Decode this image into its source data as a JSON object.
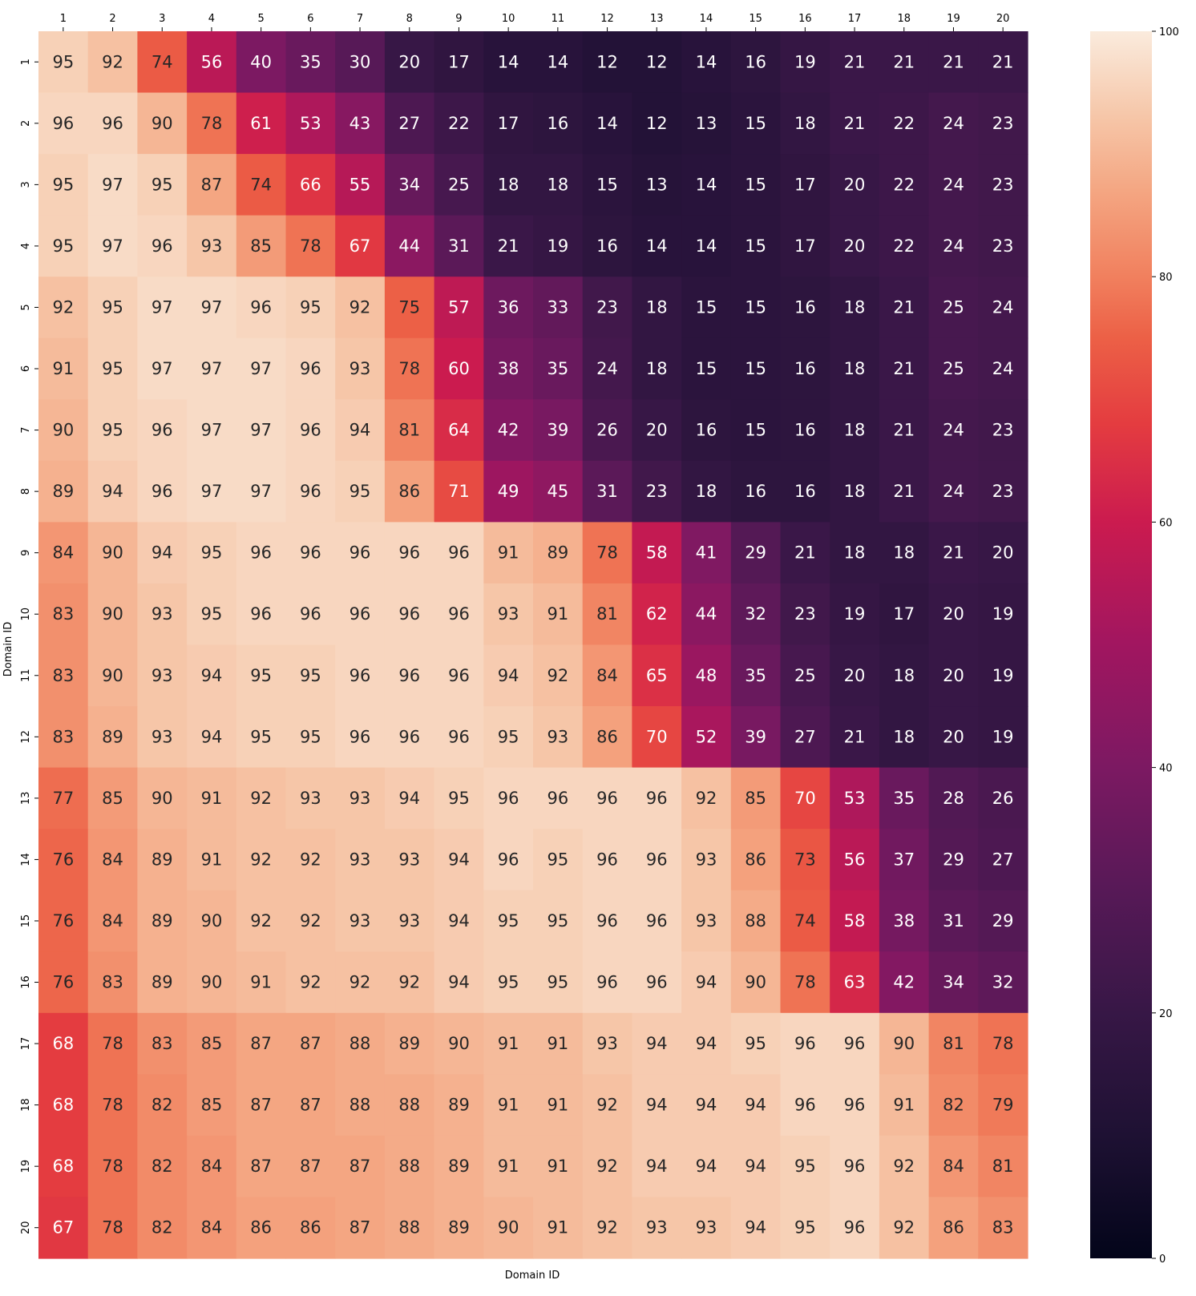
{
  "chart_data": {
    "type": "heatmap",
    "title": "",
    "xlabel": "Domain ID",
    "ylabel": "Domain ID",
    "x_categories": [
      "1",
      "2",
      "3",
      "4",
      "5",
      "6",
      "7",
      "8",
      "9",
      "10",
      "11",
      "12",
      "13",
      "14",
      "15",
      "16",
      "17",
      "18",
      "19",
      "20"
    ],
    "y_categories": [
      "1",
      "2",
      "3",
      "4",
      "5",
      "6",
      "7",
      "8",
      "9",
      "10",
      "11",
      "12",
      "13",
      "14",
      "15",
      "16",
      "17",
      "18",
      "19",
      "20"
    ],
    "x_axis_position": "top",
    "colormap": "rocket",
    "colorbar": {
      "min": 0,
      "max": 100,
      "ticks": [
        0,
        20,
        40,
        60,
        80,
        100
      ]
    },
    "values": [
      [
        95,
        92,
        74,
        56,
        40,
        35,
        30,
        20,
        17,
        14,
        14,
        12,
        12,
        14,
        16,
        19,
        21,
        21,
        21,
        21
      ],
      [
        96,
        96,
        90,
        78,
        61,
        53,
        43,
        27,
        22,
        17,
        16,
        14,
        12,
        13,
        15,
        18,
        21,
        22,
        24,
        23
      ],
      [
        95,
        97,
        95,
        87,
        74,
        66,
        55,
        34,
        25,
        18,
        18,
        15,
        13,
        14,
        15,
        17,
        20,
        22,
        24,
        23
      ],
      [
        95,
        97,
        96,
        93,
        85,
        78,
        67,
        44,
        31,
        21,
        19,
        16,
        14,
        14,
        15,
        17,
        20,
        22,
        24,
        23
      ],
      [
        92,
        95,
        97,
        97,
        96,
        95,
        92,
        75,
        57,
        36,
        33,
        23,
        18,
        15,
        15,
        16,
        18,
        21,
        25,
        24
      ],
      [
        91,
        95,
        97,
        97,
        97,
        96,
        93,
        78,
        60,
        38,
        35,
        24,
        18,
        15,
        15,
        16,
        18,
        21,
        25,
        24
      ],
      [
        90,
        95,
        96,
        97,
        97,
        96,
        94,
        81,
        64,
        42,
        39,
        26,
        20,
        16,
        15,
        16,
        18,
        21,
        24,
        23
      ],
      [
        89,
        94,
        96,
        97,
        97,
        96,
        95,
        86,
        71,
        49,
        45,
        31,
        23,
        18,
        16,
        16,
        18,
        21,
        24,
        23
      ],
      [
        84,
        90,
        94,
        95,
        96,
        96,
        96,
        96,
        96,
        91,
        89,
        78,
        58,
        41,
        29,
        21,
        18,
        18,
        21,
        20
      ],
      [
        83,
        90,
        93,
        95,
        96,
        96,
        96,
        96,
        96,
        93,
        91,
        81,
        62,
        44,
        32,
        23,
        19,
        17,
        20,
        19
      ],
      [
        83,
        90,
        93,
        94,
        95,
        95,
        96,
        96,
        96,
        94,
        92,
        84,
        65,
        48,
        35,
        25,
        20,
        18,
        20,
        19
      ],
      [
        83,
        89,
        93,
        94,
        95,
        95,
        96,
        96,
        96,
        95,
        93,
        86,
        70,
        52,
        39,
        27,
        21,
        18,
        20,
        19
      ],
      [
        77,
        85,
        90,
        91,
        92,
        93,
        93,
        94,
        95,
        96,
        96,
        96,
        96,
        92,
        85,
        70,
        53,
        35,
        28,
        26
      ],
      [
        76,
        84,
        89,
        91,
        92,
        92,
        93,
        93,
        94,
        96,
        95,
        96,
        96,
        93,
        86,
        73,
        56,
        37,
        29,
        27
      ],
      [
        76,
        84,
        89,
        90,
        92,
        92,
        93,
        93,
        94,
        95,
        95,
        96,
        96,
        93,
        88,
        74,
        58,
        38,
        31,
        29
      ],
      [
        76,
        83,
        89,
        90,
        91,
        92,
        92,
        92,
        94,
        95,
        95,
        96,
        96,
        94,
        90,
        78,
        63,
        42,
        34,
        32
      ],
      [
        68,
        78,
        83,
        85,
        87,
        87,
        88,
        89,
        90,
        91,
        91,
        93,
        94,
        94,
        95,
        96,
        96,
        90,
        81,
        78
      ],
      [
        68,
        78,
        82,
        85,
        87,
        87,
        88,
        88,
        89,
        91,
        91,
        92,
        94,
        94,
        94,
        96,
        96,
        91,
        82,
        79
      ],
      [
        68,
        78,
        82,
        84,
        87,
        87,
        87,
        88,
        89,
        91,
        91,
        92,
        94,
        94,
        94,
        95,
        96,
        92,
        84,
        81
      ],
      [
        67,
        78,
        82,
        84,
        86,
        86,
        87,
        88,
        89,
        90,
        91,
        92,
        93,
        93,
        94,
        95,
        96,
        92,
        86,
        83
      ]
    ]
  }
}
